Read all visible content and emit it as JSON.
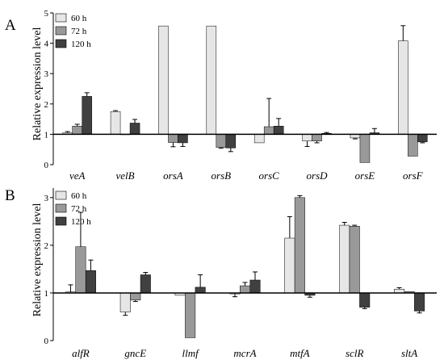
{
  "colors": {
    "h60": "#e6e6e6",
    "h72": "#999999",
    "h120": "#404040",
    "axis": "#000000"
  },
  "chart_data": [
    {
      "panel": "A",
      "type": "bar",
      "ylabel": "Relative expression level",
      "ylim": [
        0,
        5
      ],
      "yticks": [
        "0",
        "1",
        "2",
        "3",
        "4",
        "5"
      ],
      "baseline": 1,
      "grid": false,
      "legend_position": "top-left",
      "categories": [
        "veA",
        "velB",
        "orsA",
        "orsB",
        "orsC",
        "orsD",
        "orsE",
        "orsF"
      ],
      "series": [
        {
          "name": "60 h",
          "values": [
            1.05,
            1.75,
            4.57,
            4.57,
            0.72,
            0.78,
            0.88,
            4.08
          ],
          "errors": [
            0.04,
            0.03,
            0,
            0,
            0,
            0.18,
            0.03,
            0.5
          ]
        },
        {
          "name": "72 h",
          "values": [
            1.27,
            1.0,
            0.73,
            0.57,
            1.25,
            0.78,
            0.07,
            0.28
          ],
          "errors": [
            0.06,
            0,
            0.14,
            0.03,
            0.93,
            0.06,
            0,
            0
          ]
        },
        {
          "name": "120 h",
          "values": [
            2.25,
            1.37,
            0.72,
            0.55,
            1.27,
            1.03,
            1.05,
            0.75
          ],
          "errors": [
            0.12,
            0.12,
            0.12,
            0.12,
            0.25,
            0.03,
            0.14,
            0.03
          ]
        }
      ]
    },
    {
      "panel": "B",
      "type": "bar",
      "ylabel": "Relative expression level",
      "ylim": [
        0,
        3.2
      ],
      "yticks": [
        "0",
        "1",
        "2",
        "3"
      ],
      "baseline": 1,
      "grid": false,
      "legend_position": "top-left",
      "categories": [
        "alfR",
        "gncE",
        "llmf",
        "mcrA",
        "mtfA",
        "sclR",
        "sltA"
      ],
      "series": [
        {
          "name": "60 h",
          "values": [
            1.02,
            0.6,
            0.95,
            0.98,
            2.15,
            2.42,
            1.08
          ],
          "errors": [
            0.15,
            0.07,
            0,
            0.06,
            0.45,
            0.06,
            0.03
          ]
        },
        {
          "name": "72 h",
          "values": [
            1.97,
            0.85,
            0.06,
            1.15,
            3.0,
            2.4,
            1.03
          ],
          "errors": [
            0.72,
            0.03,
            0,
            0.07,
            0.04,
            0.02,
            0
          ]
        },
        {
          "name": "120 h",
          "values": [
            1.47,
            1.38,
            1.12,
            1.27,
            0.95,
            0.7,
            0.62
          ],
          "errors": [
            0.22,
            0.05,
            0.26,
            0.17,
            0.04,
            0.03,
            0.04
          ]
        }
      ]
    }
  ]
}
